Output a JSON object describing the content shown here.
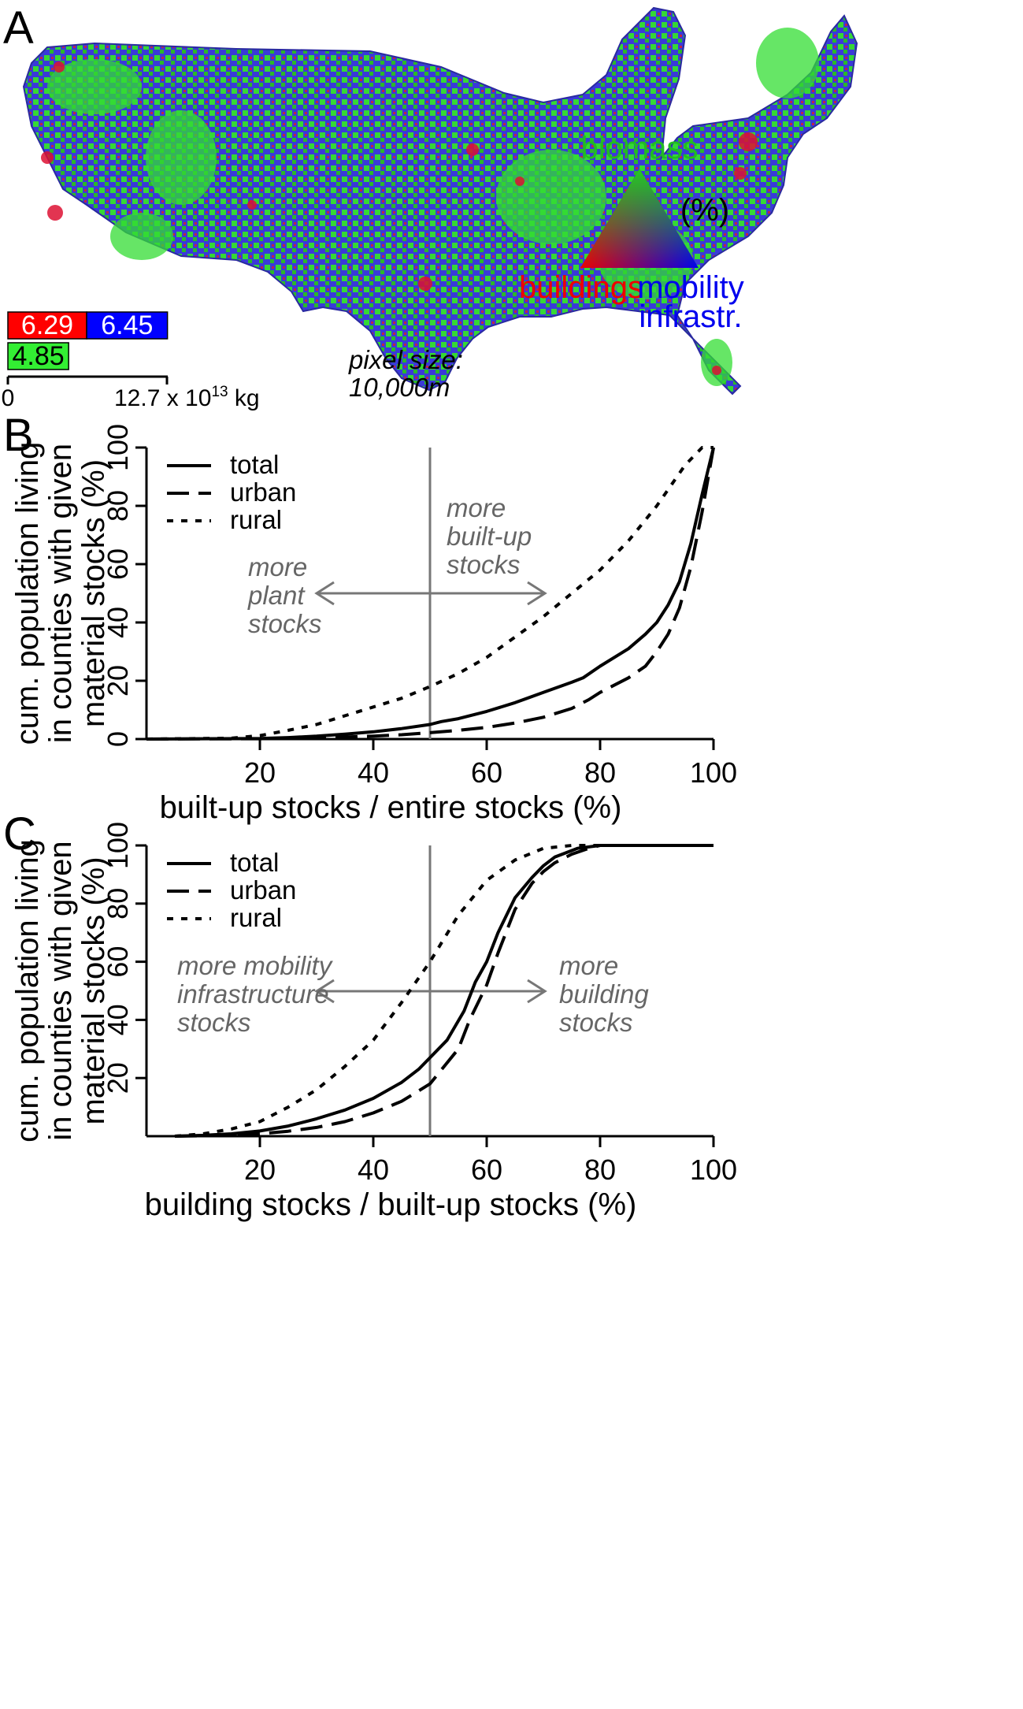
{
  "panel_a": {
    "letter": "A",
    "map_colors": {
      "biomass": "#33dd33",
      "buildings": "#dd1133",
      "mobility": "#2222dd"
    },
    "triangle": {
      "top_label": "biomass",
      "unit_label": "(%)",
      "left_label": "buildings",
      "right_label_1": "mobility",
      "right_label_2": "infrastr.",
      "colors": {
        "top": "#22cc22",
        "left": "#ee0000",
        "right": "#0000ee"
      }
    },
    "bars": {
      "buildings_value": "6.29",
      "mobility_value": "6.45",
      "biomass_value": "4.85",
      "buildings": 6.29,
      "mobility": 6.45,
      "biomass": 4.85,
      "scale_max": 12.7,
      "axis_zero": "0",
      "axis_max_label": "12.7 x 10",
      "axis_max_exp": "13",
      "axis_unit": " kg"
    },
    "pixel_note_1": "pixel size:",
    "pixel_note_2": "10,000m"
  },
  "chart_data": [
    {
      "panel": "B",
      "type": "line",
      "title": "",
      "xlabel": "built-up stocks / entire stocks (%)",
      "ylabel_lines": [
        "cum. population living",
        "in counties with given",
        "material stocks (%)"
      ],
      "xlim": [
        0,
        100
      ],
      "ylim": [
        0,
        100
      ],
      "xticks": [
        20,
        40,
        60,
        80,
        100
      ],
      "yticks": [
        0,
        20,
        40,
        60,
        80,
        100
      ],
      "vline": 50,
      "legend": {
        "placement": "top-left",
        "entries": [
          "total",
          "urban",
          "rural"
        ]
      },
      "annotations": {
        "left": [
          "more",
          "plant",
          "stocks"
        ],
        "right": [
          "more",
          "built-up",
          "stocks"
        ]
      },
      "series": [
        {
          "name": "total",
          "style": "solid",
          "x": [
            0,
            20,
            25,
            30,
            35,
            40,
            45,
            50,
            52,
            55,
            60,
            65,
            70,
            75,
            77,
            80,
            85,
            88,
            90,
            92,
            94,
            96,
            98,
            100
          ],
          "y": [
            0,
            0.2,
            0.5,
            1,
            1.7,
            2.5,
            3.6,
            5,
            6,
            7,
            9.5,
            12.5,
            16,
            19.5,
            21,
            25,
            31,
            36,
            40,
            46,
            54,
            67,
            84,
            100
          ]
        },
        {
          "name": "urban",
          "style": "dashed",
          "x": [
            0,
            20,
            30,
            40,
            45,
            50,
            55,
            60,
            65,
            70,
            75,
            78,
            80,
            85,
            88,
            90,
            92,
            94,
            96,
            98,
            100
          ],
          "y": [
            0,
            0.1,
            0.4,
            1,
            1.5,
            2.2,
            3,
            4,
            5.5,
            7.5,
            10.5,
            13.5,
            16,
            21,
            25,
            30,
            36,
            45,
            59,
            78,
            100
          ]
        },
        {
          "name": "rural",
          "style": "dotted",
          "x": [
            0,
            15,
            20,
            25,
            30,
            35,
            40,
            45,
            50,
            55,
            60,
            65,
            70,
            75,
            80,
            85,
            90,
            95,
            98,
            100
          ],
          "y": [
            0,
            0.3,
            1.2,
            3,
            5,
            8,
            11,
            14,
            18,
            22.5,
            28,
            35,
            42,
            50,
            58,
            68,
            80,
            94,
            100,
            100
          ]
        }
      ]
    },
    {
      "panel": "C",
      "type": "line",
      "title": "",
      "xlabel": "building stocks / built-up stocks (%)",
      "ylabel_lines": [
        "cum. population living",
        "in counties with given",
        "material stocks (%)"
      ],
      "xlim": [
        0,
        100
      ],
      "ylim": [
        0,
        100
      ],
      "xticks": [
        20,
        40,
        60,
        80,
        100
      ],
      "yticks": [
        20,
        40,
        60,
        80,
        100
      ],
      "vline": 50,
      "legend": {
        "placement": "top-left",
        "entries": [
          "total",
          "urban",
          "rural"
        ]
      },
      "annotations": {
        "left": [
          "more mobility",
          "infrastructure",
          "stocks"
        ],
        "right": [
          "more",
          "building",
          "stocks"
        ]
      },
      "series": [
        {
          "name": "total",
          "style": "solid",
          "x": [
            5,
            10,
            15,
            20,
            25,
            30,
            35,
            40,
            45,
            48,
            50,
            53,
            56,
            58,
            60,
            62,
            65,
            68,
            70,
            72,
            74,
            76,
            80,
            100
          ],
          "y": [
            0,
            0.3,
            0.8,
            1.8,
            3.5,
            6,
            9,
            13,
            18.5,
            23,
            27,
            33,
            43,
            53,
            60,
            70,
            82,
            89,
            93,
            96,
            97.5,
            99,
            100,
            100
          ]
        },
        {
          "name": "urban",
          "style": "dashed",
          "x": [
            5,
            15,
            20,
            25,
            30,
            35,
            40,
            45,
            50,
            55,
            57,
            60,
            62,
            65,
            68,
            70,
            72,
            75,
            78,
            80,
            100
          ],
          "y": [
            0,
            0.3,
            0.8,
            1.7,
            3,
            5,
            8,
            12,
            18,
            30,
            40,
            52,
            63,
            78,
            87,
            91,
            94,
            97,
            99,
            100,
            100
          ]
        },
        {
          "name": "rural",
          "style": "dotted",
          "x": [
            5,
            10,
            15,
            20,
            25,
            30,
            35,
            40,
            45,
            50,
            55,
            60,
            65,
            70,
            75,
            80,
            100
          ],
          "y": [
            0,
            0.8,
            2.5,
            5,
            10,
            16,
            24,
            33,
            46,
            60,
            76,
            88,
            95,
            99,
            100,
            100,
            100
          ]
        }
      ]
    }
  ]
}
